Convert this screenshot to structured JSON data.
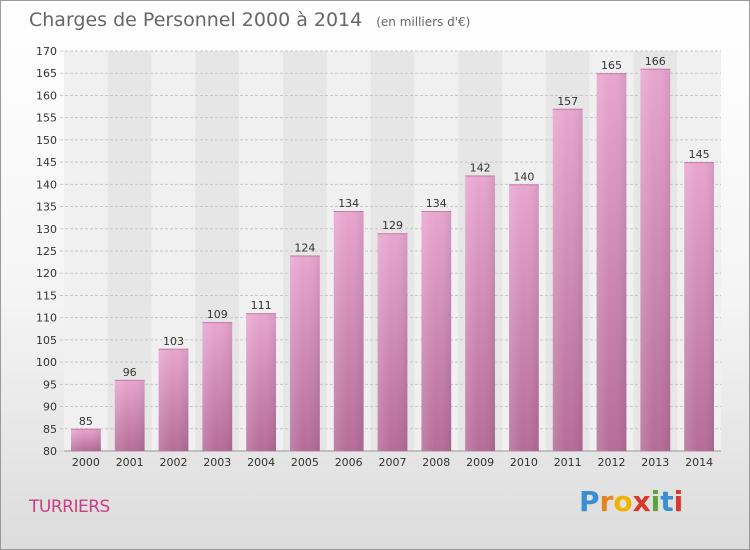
{
  "header": {
    "title": "Charges de Personnel 2000 à 2014",
    "subtitle": "(en milliers d'€)"
  },
  "footer": {
    "city": "TURRIERS",
    "logo_letters": [
      "P",
      "r",
      "o",
      "x",
      "i",
      "t",
      "i"
    ],
    "logo_colors": [
      "#3a8fd4",
      "#e8821e",
      "#f0b400",
      "#d9382a",
      "#5aa43c",
      "#3a8fd4",
      "#d9382a"
    ]
  },
  "chart_data": {
    "type": "bar",
    "title": "Charges de Personnel 2000 à 2014",
    "subtitle": "(en milliers d'€)",
    "xlabel": "",
    "ylabel": "",
    "categories": [
      "2000",
      "2001",
      "2002",
      "2003",
      "2004",
      "2005",
      "2006",
      "2007",
      "2008",
      "2009",
      "2010",
      "2011",
      "2012",
      "2013",
      "2014"
    ],
    "values": [
      85,
      96,
      103,
      109,
      111,
      124,
      134,
      129,
      134,
      142,
      140,
      157,
      165,
      166,
      145
    ],
    "ylim": [
      80,
      170
    ],
    "yticks": [
      80,
      85,
      90,
      95,
      100,
      105,
      110,
      115,
      120,
      125,
      130,
      135,
      140,
      145,
      150,
      155,
      160,
      165,
      170
    ],
    "grid": true,
    "bar_color": "#d98cb8"
  }
}
